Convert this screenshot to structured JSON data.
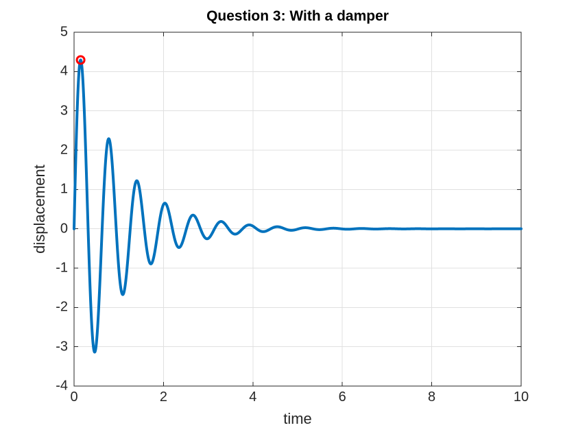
{
  "figure": {
    "background_color": "#FFFFFF"
  },
  "chart_data": {
    "type": "line",
    "title": "Question 3: With a damper",
    "xlabel": "time",
    "ylabel": "displacement",
    "xlim": [
      0,
      10
    ],
    "ylim": [
      -4,
      5
    ],
    "x_ticks": [
      0,
      2,
      4,
      6,
      8,
      10
    ],
    "x_tick_labels": [
      "0",
      "2",
      "4",
      "6",
      "8",
      "10"
    ],
    "y_ticks": [
      -4,
      -3,
      -2,
      -1,
      0,
      1,
      2,
      3,
      4,
      5
    ],
    "y_tick_labels": [
      "-4",
      "-3",
      "-2",
      "-1",
      "0",
      "1",
      "2",
      "3",
      "4",
      "5"
    ],
    "grid": true,
    "grid_color": "#E0E0E0",
    "axis_color": "#262626",
    "tick_label_color": "#262626",
    "title_color": "#000000",
    "series": [
      {
        "color": "#0072BD",
        "line_width": 4,
        "curve_formula": "x(t) = 5*exp(-t)*sin(10*t)",
        "amplitude": 5,
        "decay_rate": 1,
        "angular_frequency": 10,
        "t_start": 0,
        "t_end": 10,
        "start_point": [
          0,
          0
        ],
        "end_point": [
          10,
          0
        ],
        "extrema_points": [
          [
            0.147,
            4.294
          ],
          [
            0.461,
            -3.137
          ],
          [
            0.775,
            2.291
          ],
          [
            1.09,
            -1.673
          ],
          [
            1.404,
            1.222
          ],
          [
            1.718,
            -0.893
          ],
          [
            2.032,
            0.652
          ],
          [
            2.346,
            -0.476
          ],
          [
            2.66,
            0.348
          ],
          [
            2.975,
            -0.254
          ],
          [
            3.289,
            0.186
          ],
          [
            3.603,
            -0.136
          ],
          [
            3.917,
            0.099
          ],
          [
            4.231,
            -0.072
          ],
          [
            4.545,
            0.053
          ],
          [
            4.86,
            -0.039
          ],
          [
            5.174,
            0.028
          ],
          [
            5.488,
            -0.021
          ],
          [
            5.802,
            0.015
          ]
        ]
      }
    ],
    "marker": {
      "shape": "open-circle",
      "color": "#FF0000",
      "t": 0.147,
      "value": 4.294,
      "radius": 5.5,
      "stroke_width": 3
    }
  }
}
